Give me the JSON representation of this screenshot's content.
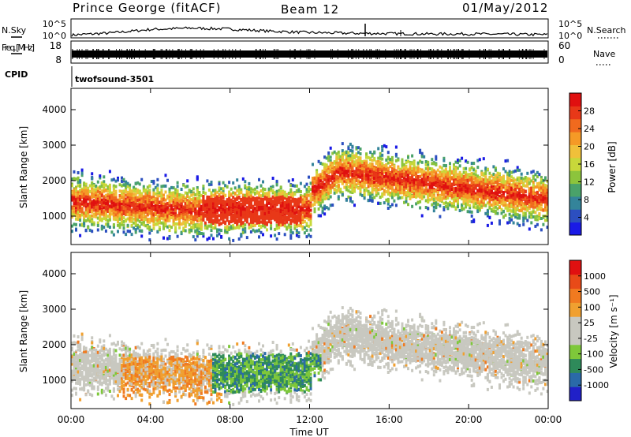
{
  "header": {
    "station": "Prince George (fitACF)",
    "beam": "Beam 12",
    "date": "01/May/2012"
  },
  "chart_data": [
    {
      "type": "line",
      "panel": "nsky",
      "ylabel": "N.Sky",
      "right_label": "N.Search",
      "yticks_left": [
        "10^5",
        "10^0"
      ],
      "yticks_right": [
        "10^5",
        "10^0"
      ],
      "x": [
        "00:00",
        "02:00",
        "04:00",
        "06:00",
        "08:00",
        "10:00",
        "12:00",
        "14:00",
        "16:00",
        "18:00",
        "20:00",
        "22:00",
        "24:00"
      ],
      "values": [
        0.6,
        1.2,
        2.2,
        2.6,
        2.3,
        1.7,
        1.3,
        1.1,
        1.0,
        0.9,
        0.9,
        0.8,
        0.7
      ],
      "ylim": [
        0,
        5
      ]
    },
    {
      "type": "line",
      "panel": "freq",
      "ylabel": "Freq. [MHz]",
      "right_label": "Nave",
      "yticks_left": [
        "18",
        "8"
      ],
      "yticks_right": [
        "60",
        "0"
      ],
      "values_mhz": 11.0
    },
    {
      "type": "table",
      "panel": "cpid",
      "label": "CPID",
      "program": "twofsound",
      "cpid": "-3501"
    },
    {
      "type": "heatmap",
      "panel": "power",
      "ylabel": "Slant Range [km]",
      "ylim": [
        200,
        4600
      ],
      "yticks": [
        "1000",
        "2000",
        "3000",
        "4000"
      ],
      "colorbar": {
        "label": "Power [dB]",
        "ticks": [
          "4",
          "8",
          "12",
          "16",
          "20",
          "24",
          "28"
        ],
        "colors": [
          "#1a1ae6",
          "#2c4fc0",
          "#34849a",
          "#4aa26a",
          "#8cc43c",
          "#c8d83a",
          "#f0c03a",
          "#f59a26",
          "#f06a1e",
          "#e83818",
          "#e01010"
        ]
      }
    },
    {
      "type": "heatmap",
      "panel": "velocity",
      "ylabel": "Slant Range [km]",
      "ylim": [
        200,
        4600
      ],
      "yticks": [
        "1000",
        "2000",
        "3000",
        "4000"
      ],
      "xlabel": "Time UT",
      "xticks": [
        "00:00",
        "04:00",
        "08:00",
        "12:00",
        "16:00",
        "20:00",
        "00:00"
      ],
      "colorbar": {
        "label": "Velocity [m s⁻¹]",
        "ticks": [
          "1000",
          "500",
          "100",
          "25",
          "-25",
          "-100",
          "-500",
          "-1000"
        ],
        "colors": [
          "#2020c8",
          "#2a6aa8",
          "#2e8a5a",
          "#7ec83a",
          "#c8c8c0",
          "#c8c8c0",
          "#f0a030",
          "#f07a20",
          "#e84a18",
          "#e01010"
        ]
      }
    }
  ]
}
